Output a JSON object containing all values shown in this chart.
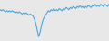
{
  "values": [
    5,
    4,
    5,
    4,
    3,
    4,
    3,
    4,
    3,
    4,
    3,
    2,
    3,
    2,
    3,
    2,
    1,
    2,
    1,
    2,
    1,
    0,
    1,
    0,
    -1,
    -4,
    -8,
    -14,
    -20,
    -16,
    -10,
    -5,
    -2,
    0,
    2,
    4,
    3,
    5,
    4,
    6,
    4,
    5,
    4,
    6,
    5,
    4,
    6,
    5,
    7,
    6,
    5,
    7,
    6,
    8,
    7,
    6,
    8,
    7,
    9,
    7,
    8,
    6,
    8,
    7,
    9,
    8,
    7,
    9,
    8,
    10,
    8,
    9,
    8,
    10,
    9,
    8,
    10,
    9,
    8,
    10
  ],
  "line_color": "#4da6d9",
  "linewidth": 0.8,
  "background_color": "#e8e8e8",
  "ylim_min": -24,
  "ylim_max": 14
}
